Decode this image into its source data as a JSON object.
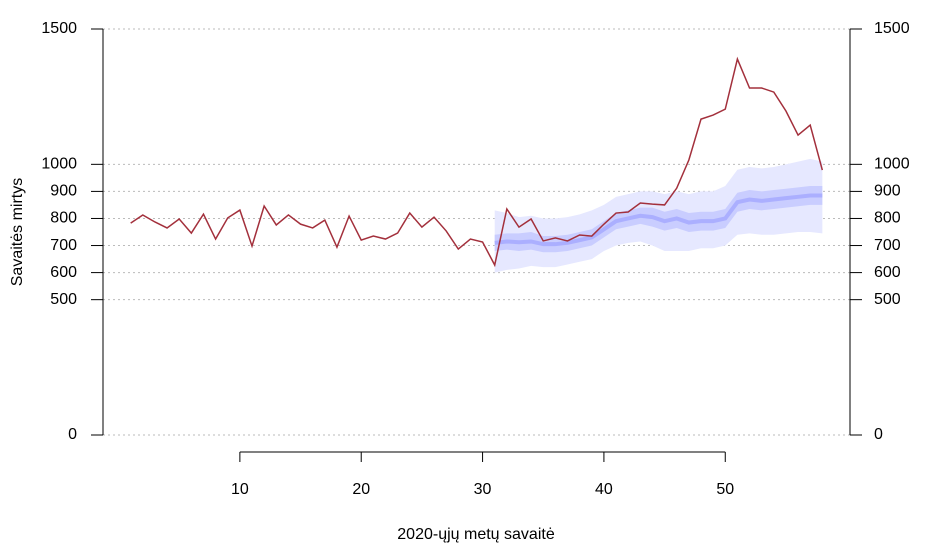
{
  "chart_data": {
    "type": "line",
    "y_label": "Savaitės mirtys",
    "x_label": "2020-ųjų metų savaitė",
    "xlim": [
      -1.28,
      60.28
    ],
    "xticks": [
      10,
      20,
      30,
      40,
      50
    ],
    "ylim": [
      0,
      1500
    ],
    "yticks": [
      0,
      500,
      600,
      700,
      800,
      900,
      1000,
      1500
    ],
    "grid": true,
    "x": [
      1,
      2,
      3,
      4,
      5,
      6,
      7,
      8,
      9,
      10,
      11,
      12,
      13,
      14,
      15,
      16,
      17,
      18,
      19,
      20,
      21,
      22,
      23,
      24,
      25,
      26,
      27,
      28,
      29,
      30,
      31,
      32,
      33,
      34,
      35,
      36,
      37,
      38,
      39,
      40,
      41,
      42,
      43,
      44,
      45,
      46,
      47,
      48,
      49,
      50,
      51,
      52,
      53,
      54,
      55,
      56,
      57,
      58
    ],
    "series": [
      {
        "color": "#a3303c",
        "values": [
          783,
          813,
          787,
          765,
          798,
          746,
          816,
          724,
          802,
          831,
          698,
          846,
          776,
          813,
          779,
          765,
          794,
          694,
          809,
          720,
          735,
          724,
          746,
          820,
          768,
          805,
          754,
          687,
          724,
          713,
          628,
          835,
          768,
          798,
          717,
          728,
          717,
          739,
          735,
          779,
          820,
          824,
          857,
          853,
          850,
          912,
          1016,
          1167,
          1182,
          1204,
          1389,
          1282,
          1282,
          1267,
          1197,
          1108,
          1145,
          979
        ]
      }
    ],
    "forecast": {
      "x": [
        31,
        32,
        33,
        34,
        35,
        36,
        37,
        38,
        39,
        40,
        41,
        42,
        43,
        44,
        45,
        46,
        47,
        48,
        49,
        50,
        51,
        52,
        53,
        54,
        55,
        56,
        57,
        58
      ],
      "color_outer": "#e6e8ff",
      "color_inner": "#c9cdff",
      "color_median": "#9ea3ff",
      "outer_lower": [
        600,
        610,
        615,
        625,
        620,
        620,
        630,
        640,
        650,
        680,
        700,
        710,
        715,
        700,
        680,
        680,
        680,
        690,
        690,
        700,
        740,
        745,
        740,
        740,
        745,
        750,
        750,
        745
      ],
      "outer_upper": [
        830,
        820,
        805,
        810,
        800,
        800,
        805,
        815,
        830,
        850,
        880,
        890,
        900,
        900,
        890,
        900,
        890,
        900,
        900,
        920,
        980,
        990,
        985,
        990,
        1000,
        1010,
        1020,
        1010
      ],
      "inner_lower": [
        680,
        685,
        680,
        685,
        675,
        675,
        680,
        690,
        700,
        730,
        760,
        770,
        780,
        770,
        755,
        765,
        750,
        755,
        755,
        765,
        825,
        835,
        830,
        835,
        840,
        845,
        850,
        850
      ],
      "inner_upper": [
        740,
        745,
        745,
        750,
        735,
        735,
        740,
        750,
        760,
        790,
        820,
        830,
        840,
        840,
        825,
        835,
        820,
        825,
        825,
        835,
        895,
        905,
        900,
        905,
        910,
        915,
        920,
        920
      ],
      "median": [
        710,
        715,
        712,
        715,
        705,
        705,
        710,
        720,
        730,
        760,
        790,
        800,
        810,
        805,
        790,
        800,
        785,
        790,
        790,
        800,
        860,
        870,
        865,
        870,
        875,
        880,
        885,
        885
      ]
    }
  }
}
